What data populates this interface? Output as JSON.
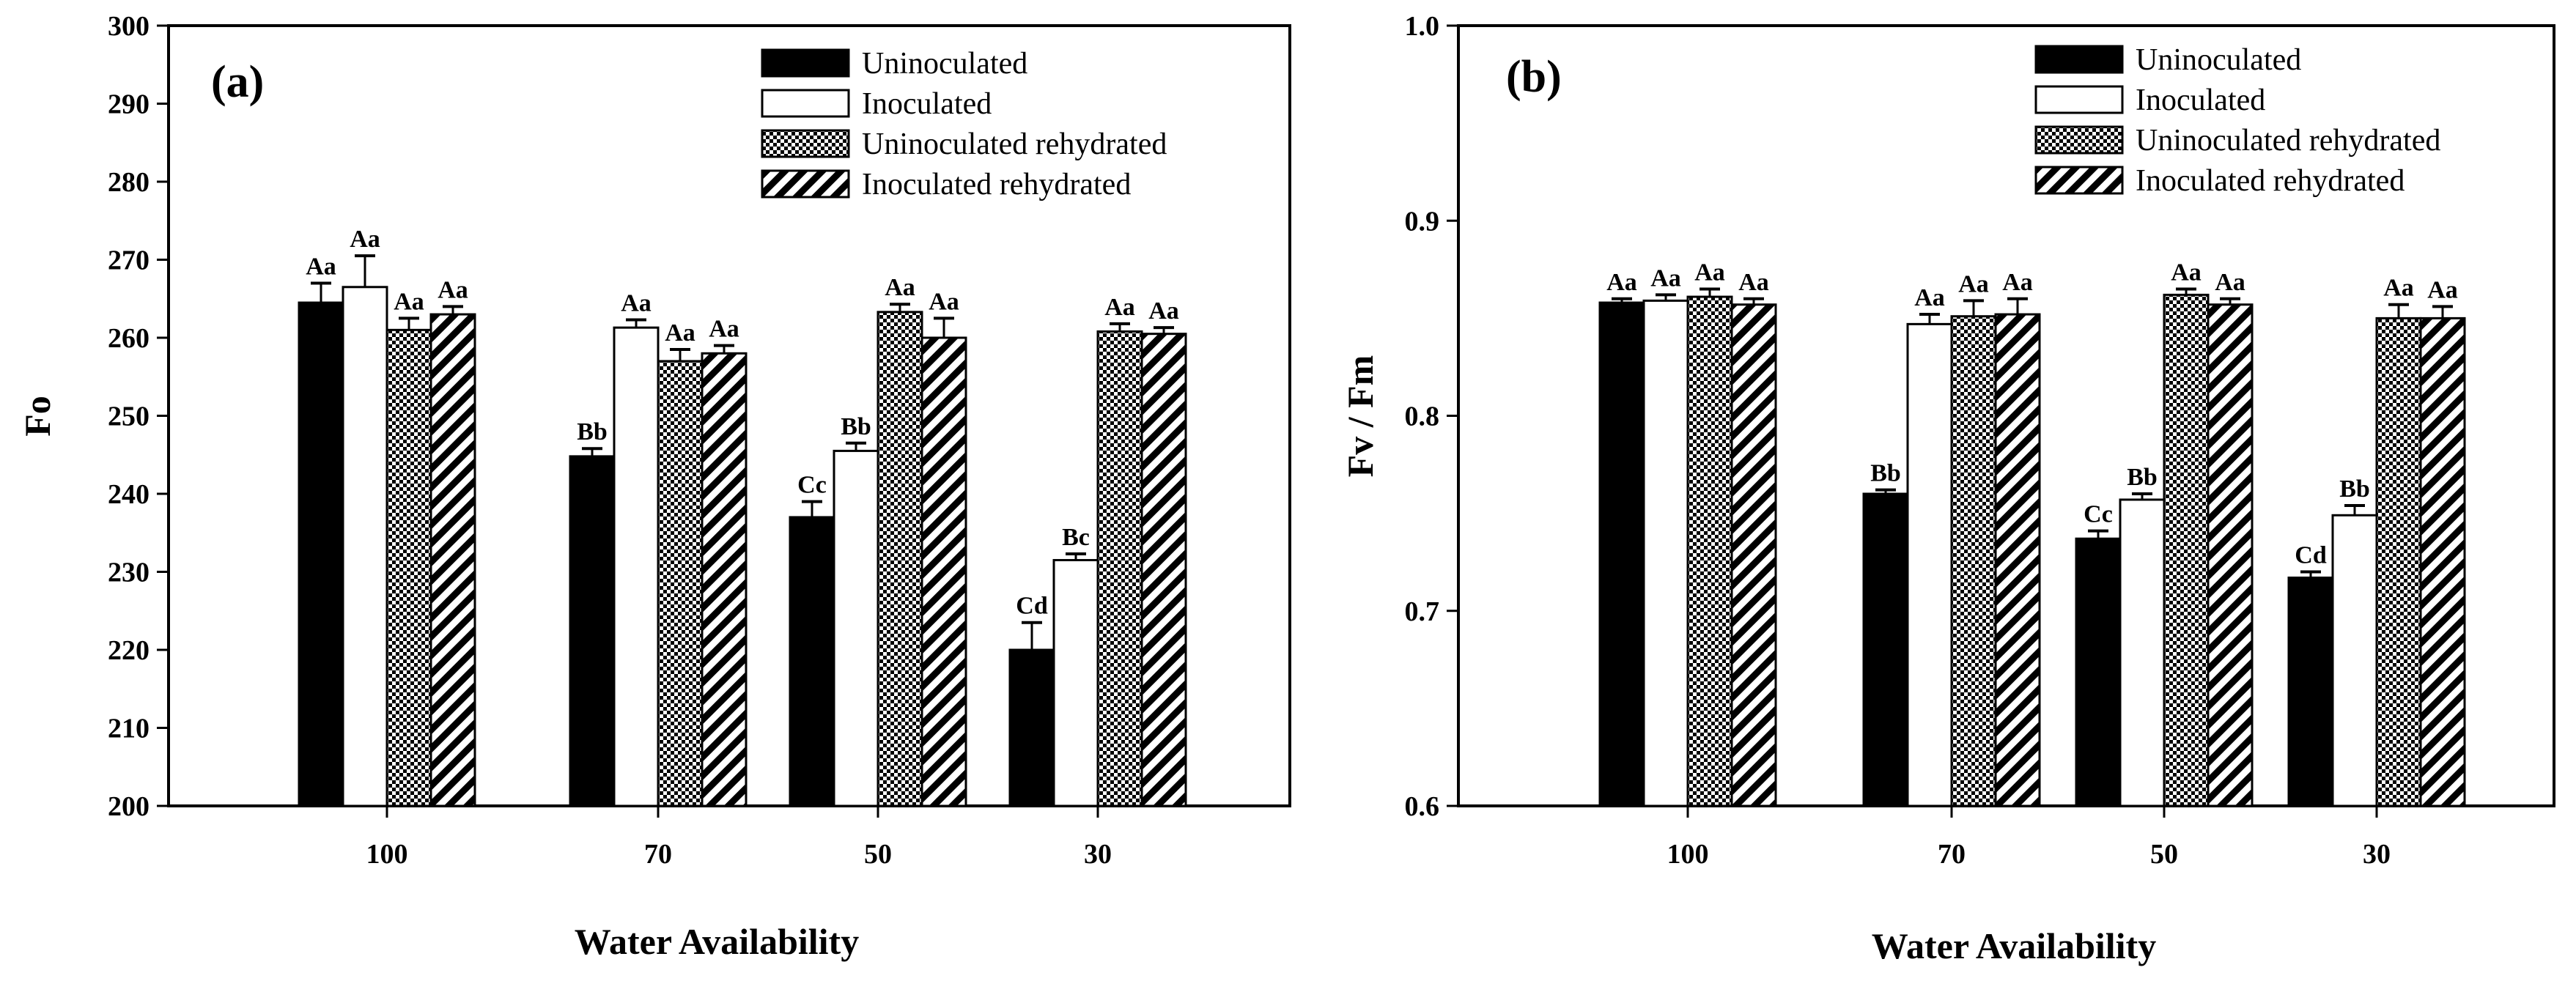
{
  "chart_data": [
    {
      "type": "bar",
      "panel_label": "(a)",
      "title": "",
      "xlabel": "Water Availability",
      "ylabel": "Fo",
      "ylim": [
        200,
        300
      ],
      "yticks": [
        "200",
        "210",
        "220",
        "230",
        "240",
        "250",
        "260",
        "270",
        "280",
        "290",
        "300"
      ],
      "categories": [
        "100",
        "70",
        "50",
        "30"
      ],
      "legend_position": "top-right",
      "series": [
        {
          "name": "Uninoculated",
          "pattern": "solid-black",
          "values": [
            264.5,
            244.8,
            237.0,
            220.0
          ],
          "errors": [
            2.5,
            1.0,
            2.0,
            3.5
          ],
          "labels": [
            "Aa",
            "Bb",
            "Cc",
            "Cd"
          ]
        },
        {
          "name": "Inoculated",
          "pattern": "white",
          "values": [
            266.5,
            261.3,
            245.5,
            231.5
          ],
          "errors": [
            4.0,
            1.0,
            1.0,
            0.8
          ],
          "labels": [
            "Aa",
            "Aa",
            "Bb",
            "Bc"
          ]
        },
        {
          "name": "Uninoculated rehydrated",
          "pattern": "checker",
          "values": [
            261.0,
            257.0,
            263.3,
            260.8
          ],
          "errors": [
            1.5,
            1.5,
            1.0,
            1.0
          ],
          "labels": [
            "Aa",
            "Aa",
            "Aa",
            "Aa"
          ]
        },
        {
          "name": "Inoculated rehydrated",
          "pattern": "hatch",
          "values": [
            263.0,
            258.0,
            260.0,
            260.5
          ],
          "errors": [
            1.0,
            1.0,
            2.5,
            0.8
          ],
          "labels": [
            "Aa",
            "Aa",
            "Aa",
            "Aa"
          ]
        }
      ]
    },
    {
      "type": "bar",
      "panel_label": "(b)",
      "title": "",
      "xlabel": "Water Availability",
      "ylabel": "Fv / Fm",
      "ylim": [
        0.6,
        1.0
      ],
      "yticks": [
        "0.6",
        "0.7",
        "0.8",
        "0.9",
        "1.0"
      ],
      "categories": [
        "100",
        "70",
        "50",
        "30"
      ],
      "legend_position": "top-right",
      "series": [
        {
          "name": "Uninoculated",
          "pattern": "solid-black",
          "values": [
            0.858,
            0.76,
            0.737,
            0.717
          ],
          "errors": [
            0.002,
            0.002,
            0.004,
            0.003
          ],
          "labels": [
            "Aa",
            "Bb",
            "Cc",
            "Cd"
          ]
        },
        {
          "name": "Inoculated",
          "pattern": "white",
          "values": [
            0.859,
            0.847,
            0.757,
            0.749
          ],
          "errors": [
            0.003,
            0.005,
            0.003,
            0.005
          ],
          "labels": [
            "Aa",
            "Aa",
            "Bb",
            "Bb"
          ]
        },
        {
          "name": "Uninoculated rehydrated",
          "pattern": "checker",
          "values": [
            0.861,
            0.851,
            0.862,
            0.85
          ],
          "errors": [
            0.004,
            0.008,
            0.003,
            0.007
          ],
          "labels": [
            "Aa",
            "Aa",
            "Aa",
            "Aa"
          ]
        },
        {
          "name": "Inoculated rehydrated",
          "pattern": "hatch",
          "values": [
            0.857,
            0.852,
            0.857,
            0.85
          ],
          "errors": [
            0.003,
            0.008,
            0.003,
            0.006
          ],
          "labels": [
            "Aa",
            "Aa",
            "Aa",
            "Aa"
          ]
        }
      ]
    }
  ]
}
